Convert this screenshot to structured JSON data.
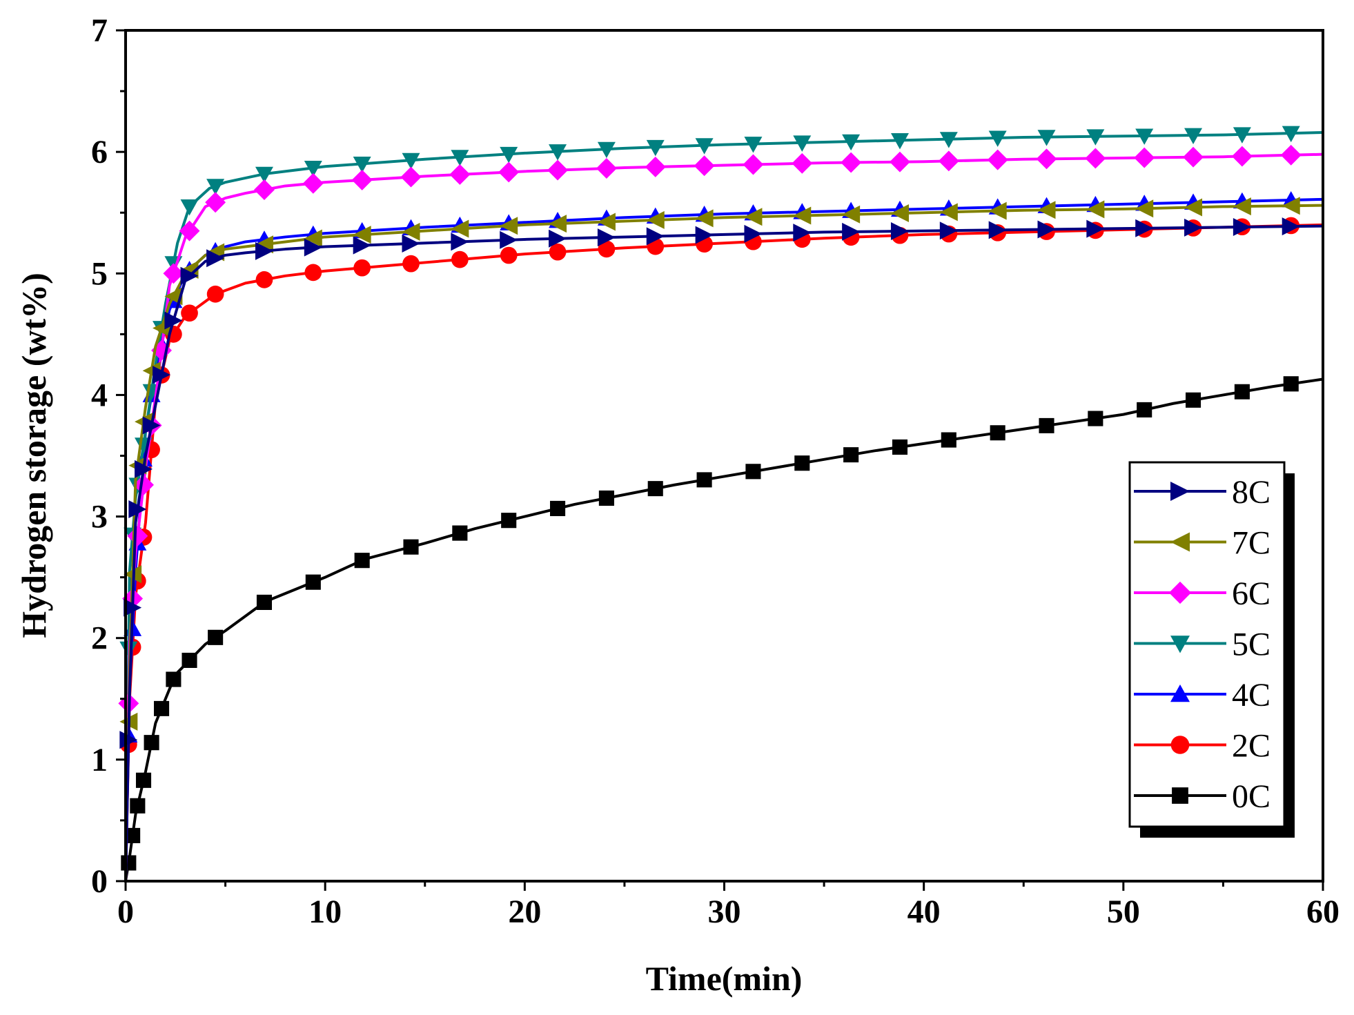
{
  "chart_data": {
    "type": "line",
    "title": "",
    "xlabel": "Time(min)",
    "ylabel": "Hydrogen storage (wt%)",
    "xlim": [
      0,
      60
    ],
    "ylim": [
      0,
      7
    ],
    "xticks": [
      0,
      10,
      20,
      30,
      40,
      50,
      60
    ],
    "yticks": [
      0,
      1,
      2,
      3,
      4,
      5,
      6,
      7
    ],
    "grid": false,
    "legend_position": "bottom-right",
    "series": [
      {
        "name": "8C",
        "color": "#000080",
        "marker": "triangle-right",
        "x": [
          0,
          0.2,
          0.5,
          1,
          1.6,
          2.2,
          3,
          4,
          5,
          6,
          8,
          10,
          15,
          20,
          25,
          30,
          35,
          40,
          45,
          50,
          55,
          60
        ],
        "y": [
          0,
          1.55,
          2.95,
          3.5,
          4.0,
          4.5,
          4.95,
          5.1,
          5.15,
          5.17,
          5.2,
          5.22,
          5.25,
          5.28,
          5.3,
          5.32,
          5.34,
          5.35,
          5.36,
          5.37,
          5.38,
          5.39
        ]
      },
      {
        "name": "7C",
        "color": "#808000",
        "marker": "triangle-left",
        "x": [
          0,
          0.2,
          0.5,
          1,
          1.5,
          2.2,
          3,
          4,
          5,
          6,
          8,
          10,
          15,
          20,
          25,
          30,
          35,
          40,
          45,
          50,
          55,
          60
        ],
        "y": [
          0,
          1.75,
          3.3,
          3.9,
          4.4,
          4.75,
          5.0,
          5.15,
          5.2,
          5.22,
          5.26,
          5.3,
          5.35,
          5.4,
          5.43,
          5.46,
          5.48,
          5.5,
          5.52,
          5.53,
          5.55,
          5.56
        ]
      },
      {
        "name": "6C",
        "color": "#FF00FF",
        "marker": "diamond",
        "x": [
          0,
          0.2,
          0.5,
          1,
          1.6,
          2.2,
          3,
          4,
          5,
          6,
          8,
          10,
          15,
          20,
          25,
          30,
          35,
          40,
          45,
          50,
          55,
          60
        ],
        "y": [
          0,
          1.95,
          2.7,
          3.4,
          4.1,
          4.9,
          5.3,
          5.55,
          5.62,
          5.66,
          5.72,
          5.75,
          5.8,
          5.84,
          5.87,
          5.89,
          5.91,
          5.92,
          5.94,
          5.95,
          5.96,
          5.98
        ]
      },
      {
        "name": "5C",
        "color": "#008080",
        "marker": "triangle-down",
        "x": [
          0,
          0.2,
          0.5,
          1,
          1.5,
          2,
          2.6,
          3.2,
          4.2,
          5,
          7,
          10,
          15,
          20,
          25,
          30,
          35,
          40,
          45,
          50,
          55,
          60
        ],
        "y": [
          0,
          2.55,
          3.15,
          3.7,
          4.25,
          4.75,
          5.25,
          5.55,
          5.7,
          5.75,
          5.82,
          5.88,
          5.94,
          5.99,
          6.03,
          6.06,
          6.08,
          6.1,
          6.12,
          6.13,
          6.14,
          6.16
        ]
      },
      {
        "name": "4C",
        "color": "#0000FF",
        "marker": "triangle-up",
        "x": [
          0,
          0.2,
          0.5,
          1,
          1.5,
          2.2,
          3,
          4,
          5,
          6,
          8,
          10,
          15,
          20,
          25,
          30,
          35,
          40,
          45,
          50,
          55,
          60
        ],
        "y": [
          0,
          1.6,
          2.55,
          3.7,
          4.2,
          4.7,
          5.0,
          5.15,
          5.22,
          5.26,
          5.3,
          5.33,
          5.38,
          5.42,
          5.46,
          5.49,
          5.51,
          5.53,
          5.55,
          5.57,
          5.59,
          5.61
        ]
      },
      {
        "name": "2C",
        "color": "#FF0000",
        "marker": "circle",
        "x": [
          0,
          0.2,
          0.5,
          1,
          1.5,
          2.2,
          3,
          4.5,
          6,
          8,
          10,
          15,
          20,
          25,
          30,
          35,
          40,
          45,
          50,
          55,
          60
        ],
        "y": [
          0,
          1.5,
          2.35,
          2.95,
          3.95,
          4.45,
          4.65,
          4.83,
          4.92,
          4.98,
          5.02,
          5.09,
          5.16,
          5.21,
          5.25,
          5.29,
          5.32,
          5.34,
          5.36,
          5.38,
          5.4
        ]
      },
      {
        "name": "0C",
        "color": "#000000",
        "marker": "square",
        "x": [
          0,
          0.2,
          0.5,
          1,
          1.5,
          2.5,
          4,
          5,
          7,
          10,
          12,
          15,
          17.5,
          20,
          22.5,
          25,
          27.5,
          30,
          32.5,
          35,
          37.5,
          40,
          42.5,
          45,
          47.5,
          50,
          52.5,
          55,
          57.5,
          60
        ],
        "y": [
          0,
          0.2,
          0.55,
          0.9,
          1.3,
          1.7,
          1.95,
          2.06,
          2.3,
          2.5,
          2.65,
          2.78,
          2.9,
          3.0,
          3.1,
          3.18,
          3.26,
          3.33,
          3.4,
          3.47,
          3.54,
          3.6,
          3.66,
          3.72,
          3.78,
          3.84,
          3.93,
          4.0,
          4.07,
          4.13
        ]
      }
    ]
  }
}
